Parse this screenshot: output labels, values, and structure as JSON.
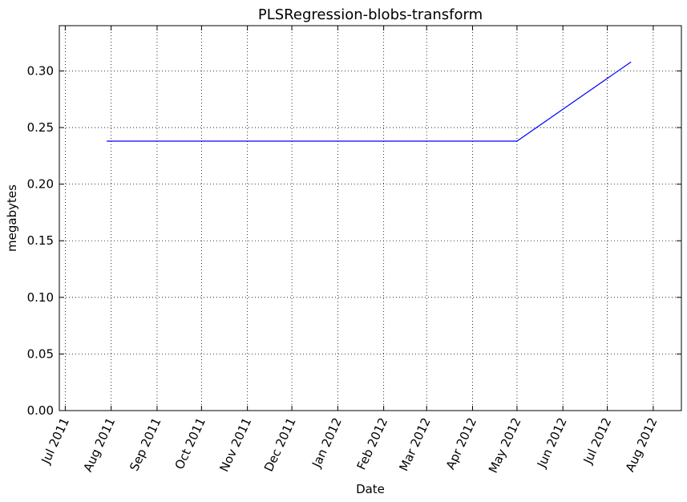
{
  "chart_data": {
    "type": "line",
    "title": "PLSRegression-blobs-transform",
    "xlabel": "Date",
    "ylabel": "megabytes",
    "x_axis_type": "date",
    "xlim": [
      "2011-06-27",
      "2012-08-20"
    ],
    "ylim": [
      0,
      0.34
    ],
    "x_ticks": [
      "2011-07-01",
      "2011-08-01",
      "2011-09-01",
      "2011-10-01",
      "2011-11-01",
      "2011-12-01",
      "2012-01-01",
      "2012-02-01",
      "2012-03-01",
      "2012-04-01",
      "2012-05-01",
      "2012-06-01",
      "2012-07-01",
      "2012-08-01"
    ],
    "x_tick_labels": [
      "Jul 2011",
      "Aug 2011",
      "Sep 2011",
      "Oct 2011",
      "Nov 2011",
      "Dec 2011",
      "Jan 2012",
      "Feb 2012",
      "Mar 2012",
      "Apr 2012",
      "May 2012",
      "Jun 2012",
      "Jul 2012",
      "Aug 2012"
    ],
    "y_ticks": [
      0,
      0.05,
      0.1,
      0.15,
      0.2,
      0.25,
      0.3
    ],
    "y_tick_labels": [
      "0.00",
      "0.05",
      "0.10",
      "0.15",
      "0.20",
      "0.25",
      "0.30"
    ],
    "grid": true,
    "series": [
      {
        "color": "#0000ff",
        "x": [
          "2011-07-29",
          "2012-05-01",
          "2012-07-17"
        ],
        "y": [
          0.238,
          0.238,
          0.308
        ]
      }
    ]
  }
}
